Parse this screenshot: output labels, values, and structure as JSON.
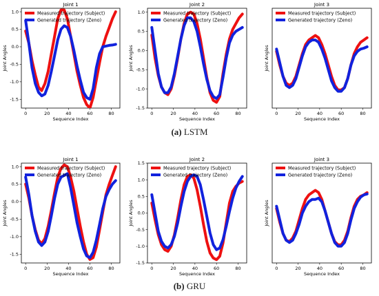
{
  "figure": {
    "caption_a_label": "(a)",
    "caption_a_text": "LSTM",
    "caption_b_label": "(b)",
    "caption_b_text": "GRU",
    "measured_color": "#ee1111",
    "generated_color": "#1122dd"
  },
  "chart_data": [
    {
      "type": "line",
      "title": "Joint 1",
      "xlabel": "Sequence Index",
      "ylabel": "Joint Angles",
      "xlim": [
        -4,
        88
      ],
      "ylim": [
        -1.75,
        1.1
      ],
      "xticks": [
        0,
        20,
        40,
        60,
        80
      ],
      "yticks": [
        -1.5,
        -1.0,
        -0.5,
        0.0,
        0.5,
        1.0
      ],
      "legend": "top-left",
      "series": [
        {
          "name": "Measured trajectory (Subject)",
          "x": [
            0,
            3,
            6,
            9,
            12,
            15,
            18,
            21,
            24,
            27,
            30,
            33,
            36,
            39,
            42,
            45,
            48,
            51,
            54,
            57,
            60,
            63,
            66,
            69,
            72,
            75,
            78,
            81,
            84
          ],
          "y": [
            0.45,
            0.1,
            -0.4,
            -0.8,
            -1.15,
            -1.25,
            -1.05,
            -0.7,
            -0.2,
            0.3,
            0.8,
            1.05,
            1.05,
            0.8,
            0.3,
            -0.2,
            -0.7,
            -1.1,
            -1.45,
            -1.65,
            -1.75,
            -1.45,
            -0.95,
            -0.45,
            0.0,
            0.3,
            0.55,
            0.8,
            1.0
          ]
        },
        {
          "name": "Generated trajectory (Zeno)",
          "x": [
            0,
            3,
            6,
            9,
            12,
            15,
            18,
            21,
            24,
            27,
            30,
            33,
            36,
            39,
            42,
            45,
            48,
            51,
            54,
            57,
            60,
            63,
            66,
            69,
            72,
            75,
            78,
            81,
            84
          ],
          "y": [
            0.75,
            0.1,
            -0.6,
            -1.05,
            -1.3,
            -1.4,
            -1.35,
            -1.1,
            -0.7,
            -0.25,
            0.2,
            0.5,
            0.6,
            0.55,
            0.3,
            -0.1,
            -0.55,
            -0.95,
            -1.3,
            -1.45,
            -1.5,
            -1.2,
            -0.6,
            -0.2,
            0.0,
            0.02,
            0.04,
            0.05,
            0.07
          ]
        }
      ]
    },
    {
      "type": "line",
      "title": "Joint 2",
      "xlabel": "Sequence Index",
      "ylabel": "Joint Angles",
      "xlim": [
        -4,
        88
      ],
      "ylim": [
        -1.5,
        1.1
      ],
      "xticks": [
        0,
        20,
        40,
        60,
        80
      ],
      "yticks": [
        -1.5,
        -1.0,
        -0.5,
        0.0,
        0.5,
        1.0
      ],
      "legend": "top-left",
      "series": [
        {
          "name": "Measured trajectory (Subject)",
          "x": [
            0,
            3,
            6,
            9,
            12,
            15,
            18,
            21,
            24,
            27,
            30,
            33,
            36,
            39,
            42,
            45,
            48,
            51,
            54,
            57,
            60,
            63,
            66,
            69,
            72,
            75,
            78,
            81,
            84
          ],
          "y": [
            0.4,
            -0.2,
            -0.65,
            -0.95,
            -1.1,
            -1.15,
            -1.0,
            -0.65,
            -0.2,
            0.3,
            0.7,
            0.95,
            1.0,
            0.95,
            0.7,
            0.3,
            -0.2,
            -0.7,
            -1.1,
            -1.3,
            -1.35,
            -1.2,
            -0.6,
            -0.1,
            0.3,
            0.55,
            0.7,
            0.85,
            0.95
          ]
        },
        {
          "name": "Generated trajectory (Zeno)",
          "x": [
            0,
            3,
            6,
            9,
            12,
            15,
            18,
            21,
            24,
            27,
            30,
            33,
            36,
            39,
            42,
            45,
            48,
            51,
            54,
            57,
            60,
            63,
            66,
            69,
            72,
            75,
            78,
            81,
            84
          ],
          "y": [
            0.6,
            0.0,
            -0.6,
            -0.95,
            -1.1,
            -1.1,
            -0.95,
            -0.6,
            -0.15,
            0.3,
            0.65,
            0.85,
            0.85,
            0.75,
            0.5,
            0.1,
            -0.35,
            -0.75,
            -1.05,
            -1.2,
            -1.25,
            -1.15,
            -0.7,
            -0.2,
            0.2,
            0.4,
            0.5,
            0.55,
            0.6
          ]
        }
      ]
    },
    {
      "type": "line",
      "title": "Joint 3",
      "xlabel": "Sequence Index",
      "ylabel": "Joint Angles",
      "xlim": [
        -4,
        88
      ],
      "ylim": [
        -1.05,
        1.15
      ],
      "xticks": [
        0,
        20,
        40,
        60,
        80
      ],
      "yticks": [],
      "legend": "top-left",
      "series": [
        {
          "name": "Measured trajectory (Subject)",
          "x": [
            0,
            3,
            6,
            9,
            12,
            15,
            18,
            21,
            24,
            27,
            30,
            33,
            36,
            39,
            42,
            45,
            48,
            51,
            54,
            57,
            60,
            63,
            66,
            69,
            72,
            75,
            78,
            81,
            84
          ],
          "y": [
            0.2,
            -0.1,
            -0.35,
            -0.5,
            -0.55,
            -0.5,
            -0.35,
            -0.1,
            0.15,
            0.35,
            0.45,
            0.5,
            0.55,
            0.5,
            0.35,
            0.15,
            -0.1,
            -0.35,
            -0.55,
            -0.65,
            -0.65,
            -0.6,
            -0.4,
            -0.1,
            0.15,
            0.3,
            0.4,
            0.45,
            0.5
          ]
        },
        {
          "name": "Generated trajectory (Zeno)",
          "x": [
            0,
            3,
            6,
            9,
            12,
            15,
            18,
            21,
            24,
            27,
            30,
            33,
            36,
            39,
            42,
            45,
            48,
            51,
            54,
            57,
            60,
            63,
            66,
            69,
            72,
            75,
            78,
            81,
            84
          ],
          "y": [
            0.25,
            -0.05,
            -0.35,
            -0.55,
            -0.6,
            -0.55,
            -0.4,
            -0.15,
            0.1,
            0.3,
            0.4,
            0.45,
            0.45,
            0.4,
            0.25,
            0.05,
            -0.2,
            -0.45,
            -0.6,
            -0.68,
            -0.68,
            -0.6,
            -0.4,
            -0.1,
            0.1,
            0.2,
            0.25,
            0.27,
            0.3
          ]
        }
      ]
    },
    {
      "type": "line",
      "title": "Joint 1",
      "xlabel": "Sequence Index",
      "ylabel": "Joint Angles",
      "xlim": [
        -4,
        88
      ],
      "ylim": [
        -1.75,
        1.1
      ],
      "xticks": [
        0,
        20,
        40,
        60,
        80
      ],
      "yticks": [
        -1.5,
        -1.0,
        -0.5,
        0.0,
        0.5,
        1.0
      ],
      "legend": "top-left",
      "series": [
        {
          "name": "Measured trajectory (Subject)",
          "x": [
            0,
            3,
            6,
            9,
            12,
            15,
            18,
            21,
            24,
            27,
            30,
            33,
            36,
            39,
            42,
            45,
            48,
            51,
            54,
            57,
            60,
            63,
            66,
            69,
            72,
            75,
            78,
            81,
            84
          ],
          "y": [
            0.5,
            0.1,
            -0.4,
            -0.8,
            -1.1,
            -1.2,
            -1.05,
            -0.7,
            -0.25,
            0.25,
            0.7,
            0.95,
            1.05,
            1.0,
            0.7,
            0.3,
            -0.2,
            -0.7,
            -1.15,
            -1.5,
            -1.65,
            -1.6,
            -1.3,
            -0.8,
            -0.3,
            0.2,
            0.5,
            0.75,
            1.0
          ]
        },
        {
          "name": "Generated trajectory (Zeno)",
          "x": [
            0,
            3,
            6,
            9,
            12,
            15,
            18,
            21,
            24,
            27,
            30,
            33,
            36,
            39,
            42,
            45,
            48,
            51,
            54,
            57,
            60,
            63,
            66,
            69,
            72,
            75,
            78,
            81,
            84
          ],
          "y": [
            0.7,
            0.2,
            -0.4,
            -0.85,
            -1.15,
            -1.25,
            -1.15,
            -0.85,
            -0.4,
            0.1,
            0.5,
            0.7,
            0.75,
            0.8,
            0.4,
            -0.1,
            -0.6,
            -1.0,
            -1.35,
            -1.55,
            -1.6,
            -1.45,
            -1.1,
            -0.65,
            -0.2,
            0.15,
            0.35,
            0.5,
            0.6
          ]
        }
      ]
    },
    {
      "type": "line",
      "title": "Joint 2",
      "xlabel": "Sequence Index",
      "ylabel": "Joint Angles",
      "xlim": [
        -4,
        88
      ],
      "ylim": [
        -1.5,
        1.5
      ],
      "xticks": [
        0,
        20,
        40,
        60,
        80
      ],
      "yticks": [
        -1.5,
        -1.0,
        -0.5,
        0.0,
        0.5,
        1.0,
        1.5
      ],
      "legend": "top-left",
      "series": [
        {
          "name": "Measured trajectory (Subject)",
          "x": [
            0,
            3,
            6,
            9,
            12,
            15,
            18,
            21,
            24,
            27,
            30,
            33,
            36,
            39,
            42,
            45,
            48,
            51,
            54,
            57,
            60,
            63,
            66,
            69,
            72,
            75,
            78,
            81,
            84
          ],
          "y": [
            0.3,
            -0.2,
            -0.65,
            -0.95,
            -1.1,
            -1.15,
            -1.0,
            -0.65,
            -0.15,
            0.4,
            0.85,
            1.1,
            1.15,
            1.05,
            0.7,
            0.2,
            -0.35,
            -0.85,
            -1.2,
            -1.35,
            -1.4,
            -1.3,
            -0.9,
            -0.3,
            0.3,
            0.65,
            0.8,
            0.9,
            0.95
          ]
        },
        {
          "name": "Generated trajectory (Zeno)",
          "x": [
            0,
            3,
            6,
            9,
            12,
            15,
            18,
            21,
            24,
            27,
            30,
            33,
            36,
            39,
            42,
            45,
            48,
            51,
            54,
            57,
            60,
            63,
            66,
            69,
            72,
            75,
            78,
            81,
            84
          ],
          "y": [
            0.55,
            0.0,
            -0.55,
            -0.85,
            -1.0,
            -1.05,
            -0.95,
            -0.7,
            -0.3,
            0.2,
            0.65,
            0.95,
            1.1,
            1.15,
            1.1,
            0.85,
            0.4,
            -0.1,
            -0.6,
            -0.95,
            -1.1,
            -1.05,
            -0.8,
            -0.4,
            0.05,
            0.45,
            0.75,
            0.95,
            1.1
          ]
        }
      ]
    },
    {
      "type": "line",
      "title": "Joint 3",
      "xlabel": "Sequence Index",
      "ylabel": "Joint Angles",
      "xlim": [
        -4,
        88
      ],
      "ylim": [
        -1.05,
        1.15
      ],
      "xticks": [
        0,
        20,
        40,
        60,
        80
      ],
      "yticks": [],
      "legend": "top-left",
      "series": [
        {
          "name": "Measured trajectory (Subject)",
          "x": [
            0,
            3,
            6,
            9,
            12,
            15,
            18,
            21,
            24,
            27,
            30,
            33,
            36,
            39,
            42,
            45,
            48,
            51,
            54,
            57,
            60,
            63,
            66,
            69,
            72,
            75,
            78,
            81,
            84
          ],
          "y": [
            0.15,
            -0.15,
            -0.4,
            -0.55,
            -0.58,
            -0.5,
            -0.35,
            -0.1,
            0.15,
            0.35,
            0.45,
            0.5,
            0.55,
            0.5,
            0.35,
            0.1,
            -0.15,
            -0.4,
            -0.58,
            -0.65,
            -0.65,
            -0.55,
            -0.35,
            -0.05,
            0.2,
            0.35,
            0.42,
            0.45,
            0.5
          ]
        },
        {
          "name": "Generated trajectory (Zeno)",
          "x": [
            0,
            3,
            6,
            9,
            12,
            15,
            18,
            21,
            24,
            27,
            30,
            33,
            36,
            39,
            42,
            45,
            48,
            51,
            54,
            57,
            60,
            63,
            66,
            69,
            72,
            75,
            78,
            81,
            84
          ],
          "y": [
            0.2,
            -0.1,
            -0.4,
            -0.55,
            -0.6,
            -0.55,
            -0.4,
            -0.2,
            0.05,
            0.2,
            0.3,
            0.35,
            0.35,
            0.38,
            0.3,
            0.1,
            -0.15,
            -0.4,
            -0.6,
            -0.68,
            -0.68,
            -0.6,
            -0.4,
            -0.1,
            0.15,
            0.3,
            0.4,
            0.45,
            0.47
          ]
        }
      ]
    }
  ]
}
